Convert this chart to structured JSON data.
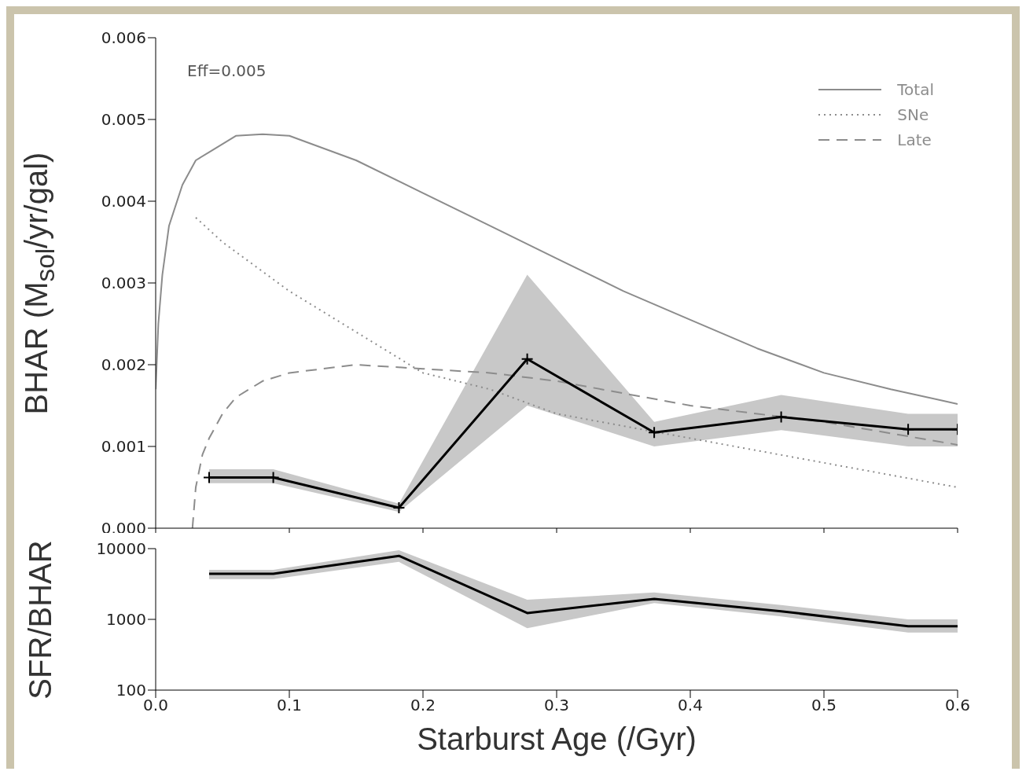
{
  "chart_data": [
    {
      "type": "line",
      "ylabel": "BHAR (M$_{sol}$/yr/gal)",
      "annotations": [
        "Eff=0.005"
      ],
      "legend": "top right",
      "tick_labels": "y",
      "xlim": [
        0,
        0.6
      ],
      "xticks": [
        0,
        0.1,
        0.2,
        0.3,
        0.4,
        0.5,
        0.6
      ],
      "ylim": [
        0,
        0.006
      ],
      "yticks": [
        {
          "value": 0,
          "label": "0.000"
        },
        0.001,
        0.002,
        0.003,
        0.004,
        0.005,
        0.006
      ],
      "series": [
        {
          "name": "Total",
          "color": "#8c8c8c",
          "line_style": "solid",
          "marker": "none",
          "x": [
            0,
            0.002,
            0.005,
            0.01,
            0.02,
            0.03,
            0.04,
            0.06,
            0.08,
            0.1,
            0.15,
            0.2,
            0.25,
            0.3,
            0.35,
            0.4,
            0.45,
            0.5,
            0.55,
            0.6
          ],
          "values": [
            0.0017,
            0.0025,
            0.0031,
            0.0037,
            0.0042,
            0.0045,
            0.0046,
            0.0048,
            0.00482,
            0.0048,
            0.0045,
            0.0041,
            0.0037,
            0.0033,
            0.0029,
            0.00255,
            0.0022,
            0.0019,
            0.0017,
            0.00152
          ]
        },
        {
          "name": "SNe",
          "color": "#8c8c8c",
          "line_style": "dotted",
          "marker": "none",
          "x": [
            0.03,
            0.05,
            0.1,
            0.15,
            0.2,
            0.25,
            0.3,
            0.35,
            0.4,
            0.45,
            0.5,
            0.55,
            0.6
          ],
          "values": [
            0.0038,
            0.0035,
            0.0029,
            0.0024,
            0.0019,
            0.0017,
            0.0014,
            0.00125,
            0.0011,
            0.00095,
            0.0008,
            0.00065,
            0.0005
          ]
        },
        {
          "name": "Late",
          "color": "#8c8c8c",
          "line_style": "dashed",
          "marker": "none",
          "x": [
            0.0275,
            0.03,
            0.035,
            0.04,
            0.05,
            0.06,
            0.08,
            0.1,
            0.15,
            0.2,
            0.25,
            0.3,
            0.35,
            0.4,
            0.5,
            0.6
          ],
          "values": [
            0,
            0.0005,
            0.0009,
            0.0011,
            0.0014,
            0.0016,
            0.0018,
            0.0019,
            0.002,
            0.00195,
            0.0019,
            0.0018,
            0.00165,
            0.0015,
            0.0013,
            0.00102
          ]
        },
        {
          "color": "#000000",
          "line_style": "solid",
          "marker": "cross",
          "x": [
            0.04,
            0.088,
            0.182,
            0.278,
            0.373,
            0.468,
            0.563,
            0.6
          ],
          "values": [
            0.00062,
            0.00062,
            0.00025,
            0.00207,
            0.00117,
            0.00136,
            0.00121,
            0.00121
          ],
          "lower": [
            0.00055,
            0.00055,
            0.0002,
            0.0015,
            0.001,
            0.0012,
            0.001,
            0.001
          ],
          "upper": [
            0.00072,
            0.00072,
            0.0003,
            0.0031,
            0.0013,
            0.00163,
            0.0014,
            0.0014
          ]
        }
      ]
    },
    {
      "type": "line",
      "ylabel": "SFR/BHAR",
      "xlabel": "Starburst Age (/Gyr)",
      "log": "y",
      "xlim": [
        0,
        0.6
      ],
      "xticks": [
        {
          "value": 0,
          "label": "0.0"
        },
        0.1,
        0.2,
        0.3,
        0.4,
        0.5,
        0.6
      ],
      "ylim": [
        100,
        10000
      ],
      "yticks": [
        100,
        1000,
        10000
      ],
      "series": [
        {
          "color": "#000000",
          "line_style": "solid",
          "marker": "none",
          "x": [
            0.04,
            0.088,
            0.182,
            0.278,
            0.373,
            0.468,
            0.563,
            0.6
          ],
          "values": [
            4400,
            4400,
            7900,
            1230,
            1950,
            1300,
            800,
            800
          ],
          "lower": [
            3700,
            3700,
            6500,
            750,
            1700,
            1100,
            650,
            650
          ],
          "upper": [
            5000,
            5000,
            9500,
            1900,
            2400,
            1600,
            1000,
            1000
          ]
        }
      ]
    }
  ]
}
